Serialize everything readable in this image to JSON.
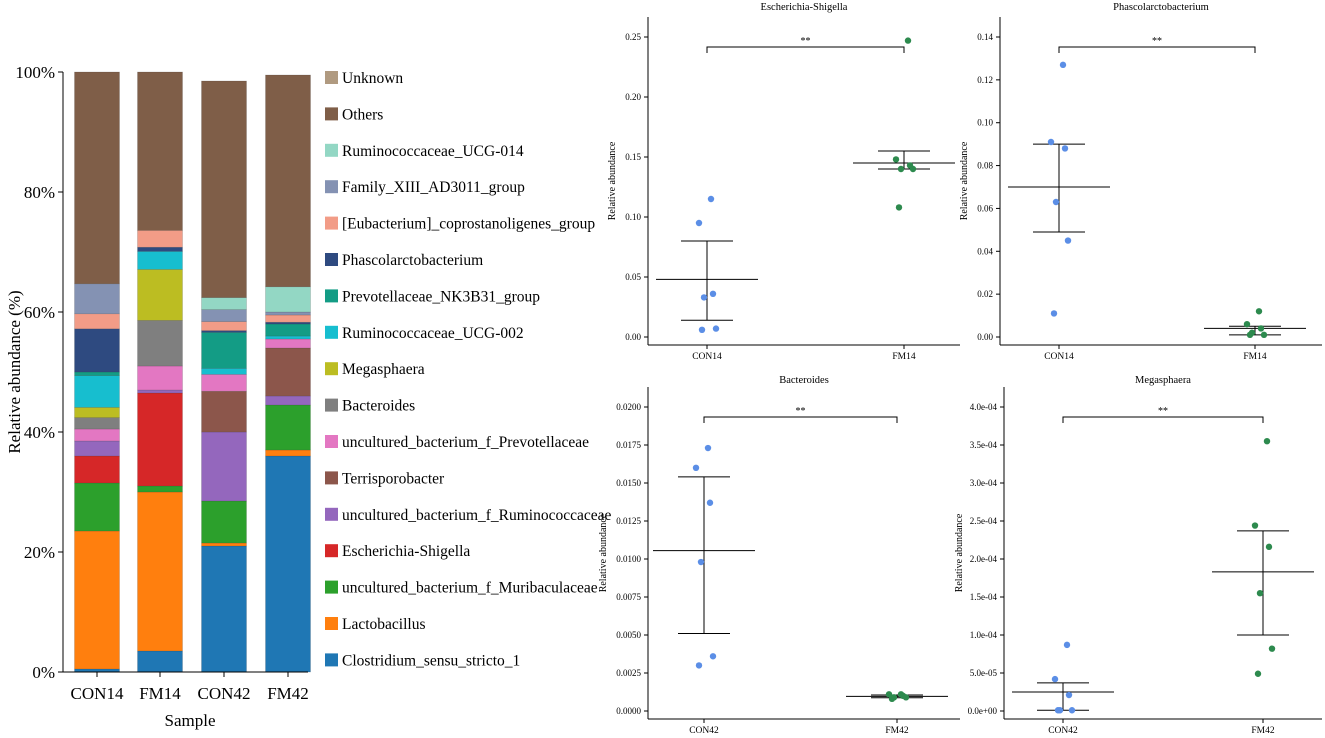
{
  "chart_data": [
    {
      "type": "stacked-bar",
      "ylabel": "Relative abundance (%)",
      "xlabel": "Sample",
      "categories": [
        "CON14",
        "FM14",
        "CON42",
        "FM42"
      ],
      "ylim": [
        0,
        100
      ],
      "yticks": [
        "0%",
        "20%",
        "40%",
        "60%",
        "80%",
        "100%"
      ],
      "series": [
        {
          "name": "Clostridium_sensu_stricto_1",
          "color": "#1f77b4",
          "values": [
            0.5,
            3.5,
            21.0,
            36.0
          ]
        },
        {
          "name": "Lactobacillus",
          "color": "#ff7f0e",
          "values": [
            23.0,
            26.5,
            0.5,
            1.0
          ]
        },
        {
          "name": "uncultured_bacterium_f_Muribaculaceae",
          "color": "#2ca02c",
          "values": [
            8.0,
            1.0,
            7.0,
            7.5
          ]
        },
        {
          "name": "Escherichia-Shigella",
          "color": "#d62728",
          "values": [
            4.5,
            15.5,
            0.0,
            0.0
          ]
        },
        {
          "name": "uncultured_bacterium_f_Ruminococcaceae",
          "color": "#9467bd",
          "values": [
            2.5,
            0.5,
            11.5,
            1.5
          ]
        },
        {
          "name": "Terrisporobacter",
          "color": "#8c564b",
          "values": [
            0.0,
            0.0,
            6.8,
            8.0
          ]
        },
        {
          "name": "uncultured_bacterium_f_Prevotellaceae",
          "color": "#e377c2",
          "values": [
            2.0,
            4.0,
            2.8,
            1.5
          ]
        },
        {
          "name": "Bacteroides",
          "color": "#7f7f7f",
          "values": [
            1.9,
            7.6,
            0.0,
            0.0
          ]
        },
        {
          "name": "Megasphaera",
          "color": "#bcbd22",
          "values": [
            1.7,
            8.5,
            0.0,
            0.0
          ]
        },
        {
          "name": "Ruminococcaceae_UCG-002",
          "color": "#17becf",
          "values": [
            5.3,
            3.0,
            1.0,
            0.5
          ]
        },
        {
          "name": "Prevotellaceae_NK3B31_group",
          "color": "#139c85",
          "values": [
            0.6,
            0.0,
            6.0,
            2.0
          ]
        },
        {
          "name": "Phascolarctobacterium",
          "color": "#2e4a80",
          "values": [
            7.2,
            0.7,
            0.3,
            0.3
          ]
        },
        {
          "name": "[Eubacterium]_coprostanoligenes_group",
          "color": "#f29c87",
          "values": [
            2.5,
            2.8,
            1.5,
            1.2
          ]
        },
        {
          "name": "Family_XIII_AD3011_group",
          "color": "#8492b3",
          "values": [
            5.0,
            0.0,
            2.0,
            0.5
          ]
        },
        {
          "name": "Ruminococcaceae_UCG-014",
          "color": "#93d7c4",
          "values": [
            0.0,
            0.0,
            2.0,
            4.2
          ]
        },
        {
          "name": "Others",
          "color": "#7f5e48",
          "values": [
            35.3,
            26.4,
            36.1,
            35.3
          ]
        },
        {
          "name": "Unknown",
          "color": "#b09a80",
          "values": [
            0.0,
            0.0,
            0.0,
            0.0
          ]
        }
      ]
    },
    {
      "type": "scatter",
      "title": "Escherichia-Shigella",
      "ylabel": "Relative abundance",
      "categories": [
        "CON14",
        "FM14"
      ],
      "ylim": [
        0,
        0.25
      ],
      "yticks": [
        0,
        0.05,
        0.1,
        0.15,
        0.2,
        0.25
      ],
      "tick_labels": [
        "0.00",
        "0.05",
        "0.10",
        "0.15",
        "0.20",
        "0.25"
      ],
      "significance": "**",
      "groups": [
        {
          "name": "CON14",
          "color": "#5b8ee6",
          "points": [
            0.115,
            0.095,
            0.036,
            0.033,
            0.007,
            0.006
          ],
          "mean": 0.048,
          "upper": 0.08,
          "lower": 0.014
        },
        {
          "name": "FM14",
          "color": "#2d8a4e",
          "points": [
            0.247,
            0.148,
            0.143,
            0.14,
            0.14,
            0.108
          ],
          "mean": 0.145,
          "upper": 0.155,
          "lower": 0.14
        }
      ]
    },
    {
      "type": "scatter",
      "title": "Phascolarctobacterium",
      "ylabel": "Relative abundance",
      "categories": [
        "CON14",
        "FM14"
      ],
      "ylim": [
        0,
        0.14
      ],
      "yticks": [
        0,
        0.02,
        0.04,
        0.06,
        0.08,
        0.1,
        0.12,
        0.14
      ],
      "tick_labels": [
        "0.00",
        "0.02",
        "0.04",
        "0.06",
        "0.08",
        "0.10",
        "0.12",
        "0.14"
      ],
      "significance": "**",
      "groups": [
        {
          "name": "CON14",
          "color": "#5b8ee6",
          "points": [
            0.127,
            0.091,
            0.088,
            0.063,
            0.045,
            0.011
          ],
          "mean": 0.07,
          "upper": 0.09,
          "lower": 0.049
        },
        {
          "name": "FM14",
          "color": "#2d8a4e",
          "points": [
            0.012,
            0.006,
            0.004,
            0.002,
            0.001,
            0.001
          ],
          "mean": 0.004,
          "upper": 0.005,
          "lower": 0.001
        }
      ]
    },
    {
      "type": "scatter",
      "title": "Bacteroides",
      "ylabel": "Relative abundance",
      "categories": [
        "CON42",
        "FM42"
      ],
      "ylim": [
        0,
        0.02
      ],
      "yticks": [
        0,
        0.0025,
        0.005,
        0.0075,
        0.01,
        0.0125,
        0.015,
        0.0175,
        0.02
      ],
      "tick_labels": [
        "0.0000",
        "0.0025",
        "0.0050",
        "0.0075",
        "0.0100",
        "0.0125",
        "0.0150",
        "0.0175",
        "0.0200"
      ],
      "significance": "**",
      "groups": [
        {
          "name": "CON42",
          "color": "#5b8ee6",
          "points": [
            0.0173,
            0.016,
            0.0137,
            0.0098,
            0.0036,
            0.003
          ],
          "mean": 0.01055,
          "upper": 0.0154,
          "lower": 0.0051
        },
        {
          "name": "FM42",
          "color": "#2d8a4e",
          "points": [
            0.0011,
            0.0011,
            0.001,
            0.0009,
            0.0009,
            0.0008
          ],
          "mean": 0.00096,
          "upper": 0.00105,
          "lower": 0.00087
        }
      ]
    },
    {
      "type": "scatter",
      "title": "Megasphaera",
      "ylabel": "Relative abundance",
      "categories": [
        "CON42",
        "FM42"
      ],
      "ylim": [
        0,
        0.0004
      ],
      "yticks": [
        0,
        5e-05,
        0.0001,
        0.00015,
        0.0002,
        0.00025,
        0.0003,
        0.00035,
        0.0004
      ],
      "tick_labels": [
        "0.0e+00",
        "5.0e-05",
        "1.0e-04",
        "1.5e-04",
        "2.0e-04",
        "2.5e-04",
        "3.0e-04",
        "3.5e-04",
        "4.0e-04"
      ],
      "significance": "**",
      "groups": [
        {
          "name": "CON42",
          "color": "#5b8ee6",
          "points": [
            8.7e-05,
            4.2e-05,
            2.1e-05,
            1e-06,
            1e-06,
            1e-06
          ],
          "mean": 2.5e-05,
          "upper": 3.7e-05,
          "lower": 1e-06
        },
        {
          "name": "FM42",
          "color": "#2d8a4e",
          "points": [
            0.000355,
            0.000244,
            0.000216,
            0.000155,
            8.2e-05,
            4.9e-05
          ],
          "mean": 0.000183,
          "upper": 0.000237,
          "lower": 0.0001
        }
      ]
    }
  ]
}
